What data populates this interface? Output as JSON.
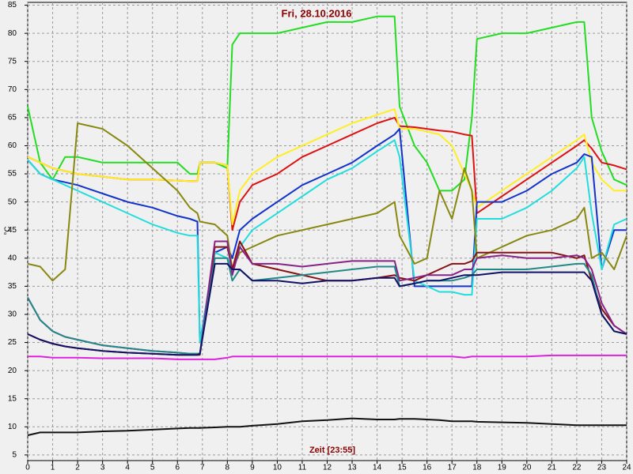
{
  "chart_data": {
    "type": "line",
    "title": "Fri, 28.10.2016",
    "x_label": "Zeit [23:55]",
    "y_label": "°C",
    "xlim": [
      0,
      24
    ],
    "ylim": [
      4,
      85.5
    ],
    "xticks": [
      0,
      1,
      2,
      3,
      4,
      5,
      6,
      7,
      8,
      9,
      10,
      11,
      12,
      13,
      14,
      15,
      16,
      17,
      18,
      19,
      20,
      21,
      22,
      23,
      24
    ],
    "yticks": [
      5,
      10,
      15,
      20,
      25,
      30,
      35,
      40,
      45,
      50,
      55,
      60,
      65,
      70,
      75,
      80,
      85
    ],
    "grid": true,
    "x": [
      0,
      0.5,
      1,
      1.5,
      2,
      3,
      4,
      5,
      6,
      6.5,
      6.8,
      6.9,
      7.5,
      8,
      8.2,
      8.5,
      9,
      10,
      11,
      12,
      13,
      14,
      14.7,
      14.9,
      15.5,
      16,
      16.5,
      17,
      17.5,
      17.8,
      18,
      19,
      20,
      21,
      22,
      22.3,
      22.6,
      23,
      23.5,
      24
    ],
    "series": [
      {
        "color": "#22dd22",
        "values": [
          67,
          57,
          54,
          58,
          58,
          57,
          57,
          57,
          57,
          55,
          55,
          57,
          57,
          56,
          78,
          80,
          80,
          80,
          81,
          82,
          82,
          83,
          83,
          67,
          60,
          57,
          52,
          52,
          54,
          65,
          79,
          80,
          80,
          81,
          82,
          82,
          65,
          59,
          54,
          53
        ]
      },
      {
        "color": "#dd1111",
        "values": [
          58,
          57,
          56,
          55.5,
          55,
          54.5,
          54,
          54,
          53.8,
          53.7,
          53.7,
          57,
          57,
          56.5,
          45,
          50,
          53,
          55,
          58,
          60,
          62,
          64,
          65,
          63.5,
          63.3,
          63,
          62.7,
          62.5,
          62,
          61.8,
          48,
          51,
          54,
          57,
          60,
          61,
          59.5,
          57,
          56.5,
          55.8
        ]
      },
      {
        "color": "#ffee22",
        "values": [
          58,
          57,
          56,
          55.5,
          55,
          54.5,
          54,
          54,
          53.8,
          53.7,
          53.7,
          57,
          57,
          56.5,
          46,
          52,
          55,
          58,
          60,
          62,
          64,
          65.5,
          66.5,
          63,
          63,
          62.5,
          62,
          60,
          55,
          52,
          49,
          52,
          55,
          58,
          61,
          62,
          57,
          54,
          52,
          52
        ]
      },
      {
        "color": "#1133cc",
        "values": [
          57.5,
          55,
          54,
          53.5,
          53,
          51.5,
          50,
          49,
          47.5,
          47,
          46.5,
          25,
          41,
          42,
          40,
          45,
          47,
          50,
          53,
          55,
          57,
          60,
          62,
          63,
          35,
          35,
          35,
          35,
          35,
          35,
          50,
          50,
          52,
          55,
          57,
          58.5,
          58,
          38,
          45,
          45
        ]
      },
      {
        "color": "#22dddd",
        "values": [
          57.5,
          55,
          54,
          53,
          52,
          50,
          48,
          46,
          44.5,
          44,
          44,
          25,
          41,
          40,
          38,
          42,
          45,
          48,
          51,
          54,
          56,
          59,
          61,
          58,
          36,
          35,
          34,
          34,
          33.5,
          33.5,
          47,
          47,
          49,
          52,
          56,
          58,
          48,
          38,
          46,
          47
        ]
      },
      {
        "color": "#888811",
        "values": [
          39,
          38.5,
          36,
          38,
          64,
          63,
          60,
          56,
          52,
          49,
          48,
          46.5,
          46,
          44,
          38,
          41,
          42,
          44,
          45,
          46,
          47,
          48,
          50,
          44,
          39,
          40,
          52,
          47,
          56,
          52,
          40,
          42,
          44,
          45,
          47,
          49,
          40,
          41,
          38,
          44
        ]
      },
      {
        "color": "#881111",
        "values": [
          26.5,
          25.5,
          24.8,
          24.3,
          24,
          23.5,
          23.2,
          23,
          22.8,
          22.8,
          22.8,
          22.8,
          42,
          42,
          38,
          43,
          39,
          38,
          37,
          36,
          36,
          36.5,
          37,
          36.5,
          36,
          37,
          38,
          39,
          39,
          39.5,
          41,
          41,
          41,
          41,
          40,
          40.5,
          36,
          31,
          28,
          26.5
        ]
      },
      {
        "color": "#882288",
        "values": [
          33,
          29,
          27,
          26,
          25.5,
          24.5,
          24,
          23.5,
          23.2,
          23,
          23,
          23,
          43,
          43,
          37,
          42,
          39,
          39,
          38.5,
          39,
          39.5,
          39.5,
          39.5,
          36,
          36.5,
          37,
          37,
          37,
          38,
          38,
          40,
          40.5,
          40,
          40,
          40.5,
          40,
          38,
          32,
          28,
          26.5
        ]
      },
      {
        "color": "#228888",
        "values": [
          33,
          29,
          27,
          26,
          25.5,
          24.5,
          24,
          23.5,
          23.2,
          23,
          23,
          23,
          40,
          40,
          36,
          38,
          36,
          36.5,
          37,
          37.5,
          38,
          38.5,
          38.5,
          35,
          35.5,
          36,
          36,
          36,
          36.5,
          37,
          38,
          38,
          38,
          38.5,
          39,
          39,
          37,
          30,
          27,
          26.5
        ]
      },
      {
        "color": "#111166",
        "values": [
          26.5,
          25.5,
          24.8,
          24.3,
          24,
          23.5,
          23.2,
          23,
          22.8,
          22.8,
          22.8,
          23,
          39,
          39,
          38,
          38,
          36,
          36,
          35.5,
          36,
          36,
          36.5,
          36.5,
          35,
          35.5,
          36,
          36,
          36.5,
          37,
          37,
          37,
          37.5,
          37.5,
          37.5,
          37.5,
          37.5,
          36,
          30,
          27,
          26.5
        ]
      },
      {
        "color": "#dd22dd",
        "values": [
          22.5,
          22.5,
          22.3,
          22.3,
          22.3,
          22.2,
          22.2,
          22.2,
          22,
          22,
          22,
          22,
          22,
          22.3,
          22.5,
          22.5,
          22.5,
          22.5,
          22.5,
          22.5,
          22.5,
          22.5,
          22.5,
          22.5,
          22.5,
          22.5,
          22.5,
          22.5,
          22.3,
          22.5,
          22.5,
          22.5,
          22.5,
          22.7,
          22.7,
          22.7,
          22.7,
          22.7,
          22.7,
          22.7
        ]
      },
      {
        "color": "#111111",
        "values": [
          8.5,
          9,
          9,
          9,
          9,
          9.2,
          9.3,
          9.5,
          9.7,
          9.8,
          9.8,
          9.8,
          9.9,
          10,
          10,
          10,
          10.2,
          10.5,
          11,
          11.2,
          11.5,
          11.3,
          11.3,
          11.4,
          11.4,
          11.3,
          11.2,
          11,
          11,
          11,
          10.9,
          10.8,
          10.7,
          10.5,
          10.3,
          10.3,
          10.3,
          10.3,
          10.3,
          10.3
        ]
      }
    ]
  }
}
